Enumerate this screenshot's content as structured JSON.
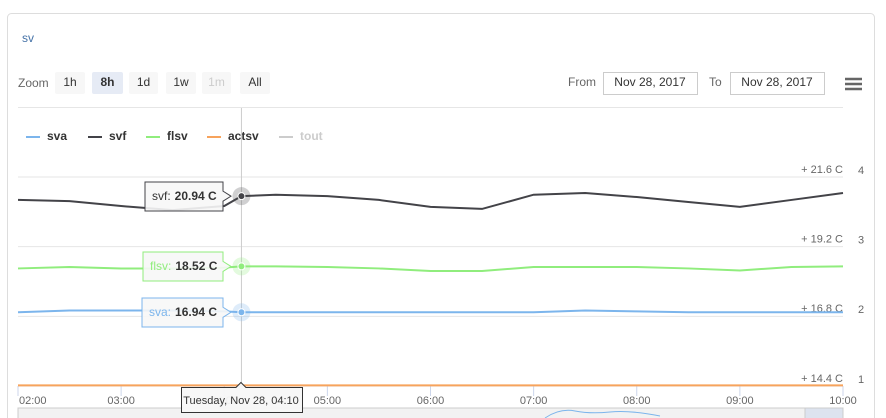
{
  "title": "sv",
  "toolbar": {
    "zoom_label": "Zoom",
    "zoom_buttons": [
      "1h",
      "8h",
      "1d",
      "1w",
      "1m",
      "All"
    ],
    "selected": "8h",
    "disabled": [
      "1m"
    ],
    "from_label": "From",
    "from_value": "Nov 28, 2017",
    "to_label": "To",
    "to_value": "Nov 28, 2017"
  },
  "chart_data": {
    "type": "line",
    "x": [
      "02:00",
      "02:30",
      "03:00",
      "03:30",
      "04:00",
      "04:10",
      "04:30",
      "05:00",
      "05:30",
      "06:00",
      "06:30",
      "07:00",
      "07:30",
      "08:00",
      "08:30",
      "09:00",
      "09:30",
      "10:00"
    ],
    "xlim": [
      "02:00",
      "10:00"
    ],
    "xticks": [
      "02:00",
      "03:00",
      "04:00",
      "05:00",
      "06:00",
      "07:00",
      "08:00",
      "09:00",
      "10:00"
    ],
    "ylim": [
      14.4,
      21.6
    ],
    "yticks": [
      {
        "value": 14.4,
        "label": "+ 14.4 C"
      },
      {
        "value": 16.8,
        "label": "+ 16.8 C"
      },
      {
        "value": 19.2,
        "label": "+ 19.2 C"
      },
      {
        "value": 21.6,
        "label": "+ 21.6 C"
      }
    ],
    "y2lim": [
      1,
      4
    ],
    "y2ticks": [
      1,
      2,
      3,
      4
    ],
    "grid": true,
    "series": [
      {
        "name": "sva",
        "color": "#7cb5ec",
        "visible": true,
        "values": [
          16.94,
          17.0,
          17.0,
          17.0,
          16.97,
          16.94,
          16.94,
          16.94,
          16.94,
          16.94,
          16.94,
          16.94,
          17.0,
          16.97,
          16.94,
          16.94,
          16.94,
          16.94
        ]
      },
      {
        "name": "svf",
        "color": "#434348",
        "visible": true,
        "values": [
          20.81,
          20.77,
          20.6,
          20.46,
          20.6,
          20.94,
          20.99,
          20.94,
          20.81,
          20.57,
          20.5,
          20.99,
          21.05,
          20.91,
          20.74,
          20.57,
          20.81,
          21.05
        ]
      },
      {
        "name": "flsv",
        "color": "#90ed7d",
        "visible": true,
        "values": [
          18.45,
          18.5,
          18.45,
          18.45,
          18.48,
          18.52,
          18.52,
          18.5,
          18.45,
          18.36,
          18.36,
          18.5,
          18.5,
          18.5,
          18.45,
          18.38,
          18.5,
          18.52
        ]
      },
      {
        "name": "actsv",
        "color": "#f7a35c",
        "visible": true,
        "values": [
          14.42,
          14.42,
          14.42,
          14.42,
          14.42,
          14.42,
          14.42,
          14.42,
          14.42,
          14.42,
          14.42,
          14.42,
          14.42,
          14.42,
          14.42,
          14.42,
          14.42,
          14.42
        ]
      },
      {
        "name": "tout",
        "color": "#cccccc",
        "visible": false,
        "values": [
          null,
          null,
          null,
          null,
          null,
          null,
          null,
          null,
          null,
          null,
          null,
          null,
          null,
          null,
          null,
          null,
          null,
          null
        ]
      }
    ],
    "crosshair_index": 5,
    "tooltip": {
      "header": "Tuesday, Nov 28, 04:10",
      "items": [
        {
          "series": 1,
          "name": "svf:",
          "value": "20.94 C"
        },
        {
          "series": 2,
          "name": "flsv:",
          "value": "18.52 C"
        },
        {
          "series": 0,
          "name": "sva:",
          "value": "16.94 C"
        }
      ]
    }
  }
}
